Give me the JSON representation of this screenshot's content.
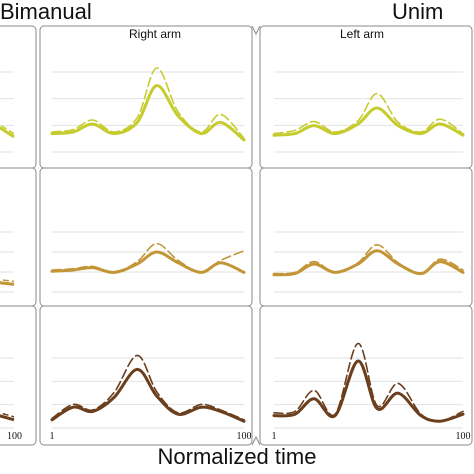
{
  "labels": {
    "title_left": "Bimanual",
    "title_right": "Unim",
    "col_right_arm": "Right arm",
    "col_left_arm": "Left arm",
    "xlabel": "Normalized time",
    "tick_1": "1",
    "tick_100": "100"
  },
  "colors": {
    "row1": "#c6cc2e",
    "row2": "#c29636",
    "row3": "#6b3e1d",
    "frame": "#8a8a8a",
    "grid": "#e2e2e2"
  },
  "chart_data": {
    "type": "line",
    "xlabel": "Normalized time",
    "x_range": [
      1,
      100
    ],
    "grid": true,
    "panels": [
      {
        "group": "Bimanual",
        "column": "Right arm",
        "row": 1,
        "color": "#c6cc2e",
        "x": [
          1,
          12,
          22,
          33,
          45,
          55,
          66,
          78,
          88,
          100
        ],
        "series": [
          {
            "values": [
              0.18,
              0.2,
              0.3,
              0.18,
              0.32,
              0.78,
              0.4,
              0.18,
              0.32,
              0.1
            ]
          },
          {
            "values": [
              0.2,
              0.23,
              0.35,
              0.2,
              0.38,
              1.0,
              0.45,
              0.2,
              0.42,
              0.12
            ]
          }
        ]
      },
      {
        "group": "Unimanual",
        "column": "Left arm",
        "row": 1,
        "color": "#c6cc2e",
        "x": [
          1,
          12,
          22,
          33,
          45,
          55,
          66,
          78,
          88,
          100
        ],
        "series": [
          {
            "values": [
              0.16,
              0.18,
              0.28,
              0.18,
              0.3,
              0.5,
              0.28,
              0.18,
              0.3,
              0.16
            ]
          },
          {
            "values": [
              0.18,
              0.22,
              0.33,
              0.2,
              0.34,
              0.68,
              0.32,
              0.2,
              0.36,
              0.18
            ]
          }
        ]
      },
      {
        "group": "Bimanual",
        "column": "Right arm",
        "row": 2,
        "color": "#c29636",
        "x": [
          1,
          12,
          22,
          33,
          45,
          55,
          66,
          78,
          88,
          100
        ],
        "series": [
          {
            "values": [
              0.28,
              0.3,
              0.34,
              0.26,
              0.4,
              0.6,
              0.42,
              0.26,
              0.42,
              0.26
            ]
          },
          {
            "values": [
              0.3,
              0.32,
              0.36,
              0.26,
              0.44,
              0.74,
              0.46,
              0.26,
              0.46,
              0.62
            ]
          }
        ]
      },
      {
        "group": "Unimanual",
        "column": "Left arm",
        "row": 2,
        "color": "#c29636",
        "x": [
          1,
          12,
          22,
          33,
          45,
          55,
          66,
          78,
          88,
          100
        ],
        "series": [
          {
            "values": [
              0.22,
              0.24,
              0.4,
              0.26,
              0.4,
              0.62,
              0.4,
              0.24,
              0.44,
              0.26
            ]
          },
          {
            "values": [
              0.24,
              0.26,
              0.44,
              0.26,
              0.42,
              0.72,
              0.42,
              0.24,
              0.48,
              0.3
            ]
          }
        ]
      },
      {
        "group": "Bimanual",
        "column": "Right arm",
        "row": 3,
        "color": "#6b3e1d",
        "x": [
          1,
          12,
          22,
          33,
          45,
          55,
          66,
          78,
          88,
          100
        ],
        "series": [
          {
            "values": [
              0.06,
              0.24,
              0.18,
              0.38,
              0.78,
              0.4,
              0.14,
              0.24,
              0.18,
              0.04
            ]
          },
          {
            "values": [
              0.08,
              0.28,
              0.2,
              0.45,
              0.98,
              0.46,
              0.16,
              0.28,
              0.2,
              0.06
            ]
          }
        ]
      },
      {
        "group": "Unimanual",
        "column": "Left arm",
        "row": 3,
        "color": "#6b3e1d",
        "x": [
          1,
          12,
          22,
          33,
          45,
          55,
          66,
          78,
          88,
          100
        ],
        "series": [
          {
            "values": [
              0.12,
              0.14,
              0.36,
              0.12,
              0.9,
              0.22,
              0.44,
              0.12,
              0.04,
              0.14
            ]
          },
          {
            "values": [
              0.16,
              0.18,
              0.48,
              0.14,
              1.15,
              0.26,
              0.58,
              0.14,
              0.04,
              0.18
            ]
          }
        ]
      }
    ],
    "cropped_left_panels": [
      {
        "row": 1,
        "color": "#c6cc2e",
        "values": [
          0.3,
          0.22,
          0.14
        ]
      },
      {
        "row": 2,
        "color": "#c29636",
        "values": [
          0.1,
          0.08,
          0.06
        ]
      },
      {
        "row": 3,
        "color": "#6b3e1d",
        "values": [
          0.14,
          0.1,
          0.06
        ]
      }
    ]
  }
}
